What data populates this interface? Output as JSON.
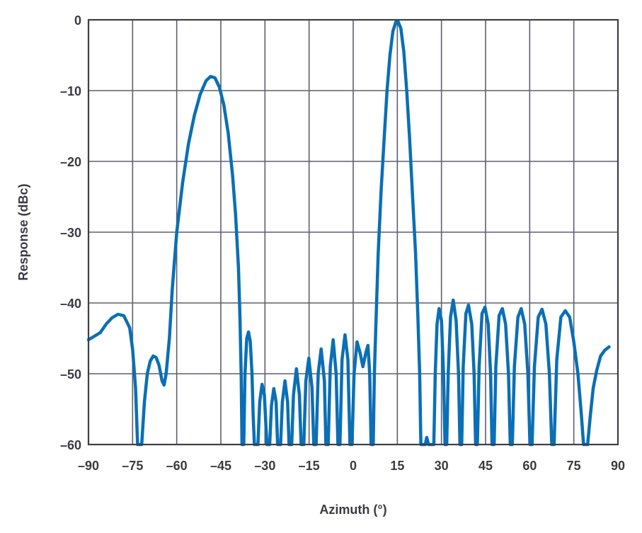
{
  "chart_data": {
    "type": "line",
    "title": "",
    "xlabel": "Azimuth (°)",
    "ylabel": "Response (dBc)",
    "xlim": [
      -90,
      90
    ],
    "ylim": [
      -60,
      0
    ],
    "x_ticks": [
      -90,
      -75,
      -60,
      -45,
      -30,
      -15,
      0,
      15,
      30,
      45,
      60,
      75,
      90
    ],
    "x_tick_labels": [
      "–90",
      "–75",
      "–60",
      "–45",
      "–30",
      "–15",
      "0",
      "15",
      "30",
      "45",
      "60",
      "75",
      "90"
    ],
    "y_ticks": [
      0,
      -10,
      -20,
      -30,
      -40,
      -50,
      -60
    ],
    "y_tick_labels": [
      "0",
      "–10",
      "–20",
      "–30",
      "–40",
      "–50",
      "–60"
    ],
    "grid": true,
    "legend": "none",
    "series_color": "#0a6fb5",
    "series": [
      {
        "points": [
          [
            -90,
            -45.2
          ],
          [
            -88,
            -44.7
          ],
          [
            -86,
            -44.2
          ],
          [
            -84,
            -43.0
          ],
          [
            -82,
            -42.1
          ],
          [
            -80,
            -41.6
          ],
          [
            -78,
            -41.8
          ],
          [
            -76,
            -43.5
          ],
          [
            -75,
            -46.5
          ],
          [
            -74,
            -52
          ],
          [
            -73.3,
            -60
          ],
          [
            -71.9,
            -60
          ],
          [
            -71,
            -54
          ],
          [
            -70,
            -50
          ],
          [
            -69,
            -48.2
          ],
          [
            -68,
            -47.5
          ],
          [
            -67,
            -47.7
          ],
          [
            -66,
            -48.8
          ],
          [
            -65,
            -51
          ],
          [
            -64.3,
            -51.6
          ],
          [
            -63.6,
            -50
          ],
          [
            -62.5,
            -45
          ],
          [
            -61.5,
            -38
          ],
          [
            -60,
            -30
          ],
          [
            -58,
            -23
          ],
          [
            -56,
            -17.5
          ],
          [
            -54,
            -13.5
          ],
          [
            -52,
            -10.5
          ],
          [
            -50,
            -8.6
          ],
          [
            -48.5,
            -8.0
          ],
          [
            -47,
            -8.2
          ],
          [
            -45.5,
            -9.5
          ],
          [
            -44,
            -12
          ],
          [
            -42.5,
            -16
          ],
          [
            -41,
            -22
          ],
          [
            -40,
            -27.5
          ],
          [
            -39,
            -35
          ],
          [
            -38.5,
            -42
          ],
          [
            -38.1,
            -50
          ],
          [
            -37.8,
            -60
          ],
          [
            -37.2,
            -60
          ],
          [
            -36.8,
            -50
          ],
          [
            -36.2,
            -45
          ],
          [
            -35.6,
            -44.1
          ],
          [
            -35,
            -45.5
          ],
          [
            -34.4,
            -50
          ],
          [
            -34,
            -56
          ],
          [
            -33.6,
            -60
          ],
          [
            -32.4,
            -60
          ],
          [
            -31.8,
            -54
          ],
          [
            -31,
            -51.5
          ],
          [
            -30.2,
            -53
          ],
          [
            -29.6,
            -58
          ],
          [
            -29.3,
            -60
          ],
          [
            -28.4,
            -60
          ],
          [
            -27.8,
            -54.5
          ],
          [
            -27,
            -52.1
          ],
          [
            -26.2,
            -54
          ],
          [
            -25.7,
            -60
          ],
          [
            -24.7,
            -60
          ],
          [
            -24.1,
            -54
          ],
          [
            -23.2,
            -51
          ],
          [
            -22.3,
            -54
          ],
          [
            -21.8,
            -60
          ],
          [
            -20.9,
            -60
          ],
          [
            -20.3,
            -53
          ],
          [
            -19.3,
            -49.3
          ],
          [
            -18.3,
            -53
          ],
          [
            -17.7,
            -60
          ],
          [
            -16.8,
            -60
          ],
          [
            -16.1,
            -51
          ],
          [
            -15.1,
            -47.8
          ],
          [
            -14,
            -52
          ],
          [
            -13.4,
            -60
          ],
          [
            -12.6,
            -60
          ],
          [
            -11.9,
            -50
          ],
          [
            -10.9,
            -46.5
          ],
          [
            -9.8,
            -51
          ],
          [
            -9.3,
            -60
          ],
          [
            -8.5,
            -60
          ],
          [
            -7.8,
            -49
          ],
          [
            -6.8,
            -45.2
          ],
          [
            -5.8,
            -50
          ],
          [
            -5.2,
            -60
          ],
          [
            -4.5,
            -60
          ],
          [
            -3.8,
            -48
          ],
          [
            -2.8,
            -44.5
          ],
          [
            -1.8,
            -48
          ],
          [
            -1.1,
            -60
          ],
          [
            -0.4,
            -60
          ],
          [
            0.3,
            -50
          ],
          [
            1.3,
            -45.5
          ],
          [
            2.3,
            -47
          ],
          [
            3.3,
            -49
          ],
          [
            4.3,
            -47
          ],
          [
            5.0,
            -46
          ],
          [
            5.6,
            -50
          ],
          [
            6.1,
            -60
          ],
          [
            6.8,
            -60
          ],
          [
            7.2,
            -50
          ],
          [
            7.8,
            -42
          ],
          [
            8.5,
            -33
          ],
          [
            9.5,
            -24
          ],
          [
            10.5,
            -17
          ],
          [
            11.5,
            -10
          ],
          [
            12.5,
            -5
          ],
          [
            13.5,
            -1.6
          ],
          [
            14.5,
            -0.3
          ],
          [
            15.2,
            -0.2
          ],
          [
            16.2,
            -1.2
          ],
          [
            17.2,
            -4.5
          ],
          [
            18.2,
            -10
          ],
          [
            19.2,
            -17
          ],
          [
            20.2,
            -25
          ],
          [
            21.2,
            -33
          ],
          [
            22,
            -42
          ],
          [
            22.6,
            -50
          ],
          [
            23,
            -60
          ],
          [
            24.5,
            -60
          ],
          [
            25,
            -59
          ],
          [
            25.6,
            -60
          ],
          [
            27.4,
            -60
          ],
          [
            27.9,
            -50
          ],
          [
            28.5,
            -43
          ],
          [
            29.2,
            -40.8
          ],
          [
            30,
            -42.5
          ],
          [
            30.7,
            -50
          ],
          [
            31.2,
            -60
          ],
          [
            31.8,
            -60
          ],
          [
            32.3,
            -50
          ],
          [
            33.1,
            -42
          ],
          [
            34,
            -39.6
          ],
          [
            35,
            -42.5
          ],
          [
            35.8,
            -50
          ],
          [
            36.3,
            -60
          ],
          [
            36.9,
            -60
          ],
          [
            37.4,
            -49
          ],
          [
            38.3,
            -41.5
          ],
          [
            39.2,
            -40.3
          ],
          [
            40.3,
            -43
          ],
          [
            41.1,
            -50
          ],
          [
            41.6,
            -60
          ],
          [
            42.2,
            -60
          ],
          [
            42.8,
            -49
          ],
          [
            43.8,
            -41.5
          ],
          [
            44.8,
            -40.6
          ],
          [
            45.9,
            -43
          ],
          [
            46.7,
            -50
          ],
          [
            47.2,
            -60
          ],
          [
            47.9,
            -60
          ],
          [
            48.5,
            -49
          ],
          [
            49.6,
            -41.8
          ],
          [
            50.7,
            -40.8
          ],
          [
            51.8,
            -43
          ],
          [
            52.8,
            -50
          ],
          [
            53.4,
            -60
          ],
          [
            54.1,
            -60
          ],
          [
            54.8,
            -49
          ],
          [
            56,
            -42
          ],
          [
            57.1,
            -40.8
          ],
          [
            58.3,
            -43
          ],
          [
            59.4,
            -50
          ],
          [
            60.1,
            -60
          ],
          [
            60.8,
            -60
          ],
          [
            61.6,
            -49
          ],
          [
            62.9,
            -42
          ],
          [
            64.2,
            -40.9
          ],
          [
            65.5,
            -43
          ],
          [
            66.7,
            -50
          ],
          [
            67.5,
            -60
          ],
          [
            68.3,
            -60
          ],
          [
            69.2,
            -48
          ],
          [
            70.6,
            -42
          ],
          [
            72.1,
            -41.1
          ],
          [
            73.6,
            -42
          ],
          [
            75,
            -45.5
          ],
          [
            76.4,
            -50
          ],
          [
            77.6,
            -56
          ],
          [
            78.3,
            -60
          ],
          [
            79.7,
            -60
          ],
          [
            80.6,
            -56
          ],
          [
            81.6,
            -52
          ],
          [
            82.8,
            -49.5
          ],
          [
            84.1,
            -47.5
          ],
          [
            85.5,
            -46.7
          ],
          [
            87,
            -46.2
          ]
        ]
      }
    ]
  }
}
